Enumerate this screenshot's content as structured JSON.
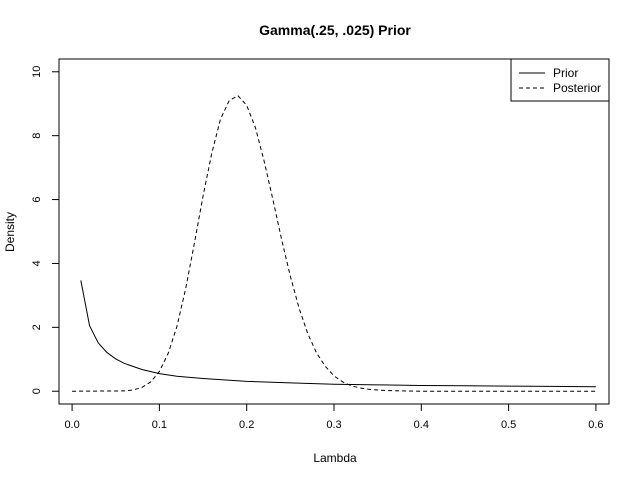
{
  "chart_data": {
    "type": "line",
    "title": "Gamma(.25, .025) Prior",
    "xlabel": "Lambda",
    "ylabel": "Density",
    "xlim": [
      -0.015,
      0.615
    ],
    "ylim": [
      -0.4,
      10.4
    ],
    "xticks": [
      0.0,
      0.1,
      0.2,
      0.3,
      0.4,
      0.5,
      0.6
    ],
    "xtick_labels": [
      "0.0",
      "0.1",
      "0.2",
      "0.3",
      "0.4",
      "0.5",
      "0.6"
    ],
    "yticks": [
      0,
      2,
      4,
      6,
      8,
      10
    ],
    "ytick_labels": [
      "0",
      "2",
      "4",
      "6",
      "8",
      "10"
    ],
    "grid": false,
    "legend": "top-right",
    "series": [
      {
        "name": "Prior",
        "style": "solid",
        "color": "#000000",
        "x": [
          0.01,
          0.02,
          0.03,
          0.04,
          0.05,
          0.06,
          0.08,
          0.1,
          0.12,
          0.15,
          0.2,
          0.25,
          0.3,
          0.35,
          0.4,
          0.45,
          0.5,
          0.55,
          0.6
        ],
        "y": [
          3.47,
          2.05,
          1.51,
          1.21,
          1.01,
          0.87,
          0.68,
          0.55,
          0.47,
          0.4,
          0.31,
          0.26,
          0.22,
          0.2,
          0.18,
          0.17,
          0.16,
          0.15,
          0.14
        ]
      },
      {
        "name": "Posterior",
        "style": "dashed",
        "color": "#000000",
        "x": [
          0.0,
          0.06,
          0.07,
          0.08,
          0.09,
          0.1,
          0.11,
          0.12,
          0.13,
          0.14,
          0.15,
          0.16,
          0.17,
          0.18,
          0.19,
          0.2,
          0.21,
          0.22,
          0.23,
          0.24,
          0.25,
          0.26,
          0.27,
          0.28,
          0.29,
          0.3,
          0.31,
          0.32,
          0.33,
          0.34,
          0.36,
          0.38,
          0.4,
          0.45,
          0.5,
          0.6
        ],
        "y": [
          0.0,
          0.01,
          0.04,
          0.12,
          0.29,
          0.62,
          1.18,
          2.02,
          3.2,
          4.62,
          6.11,
          7.45,
          8.52,
          9.1,
          9.25,
          8.95,
          8.25,
          7.2,
          6.0,
          4.75,
          3.6,
          2.6,
          1.8,
          1.2,
          0.78,
          0.48,
          0.29,
          0.17,
          0.1,
          0.06,
          0.02,
          0.01,
          0.0,
          0.0,
          0.0,
          0.0
        ]
      }
    ]
  }
}
